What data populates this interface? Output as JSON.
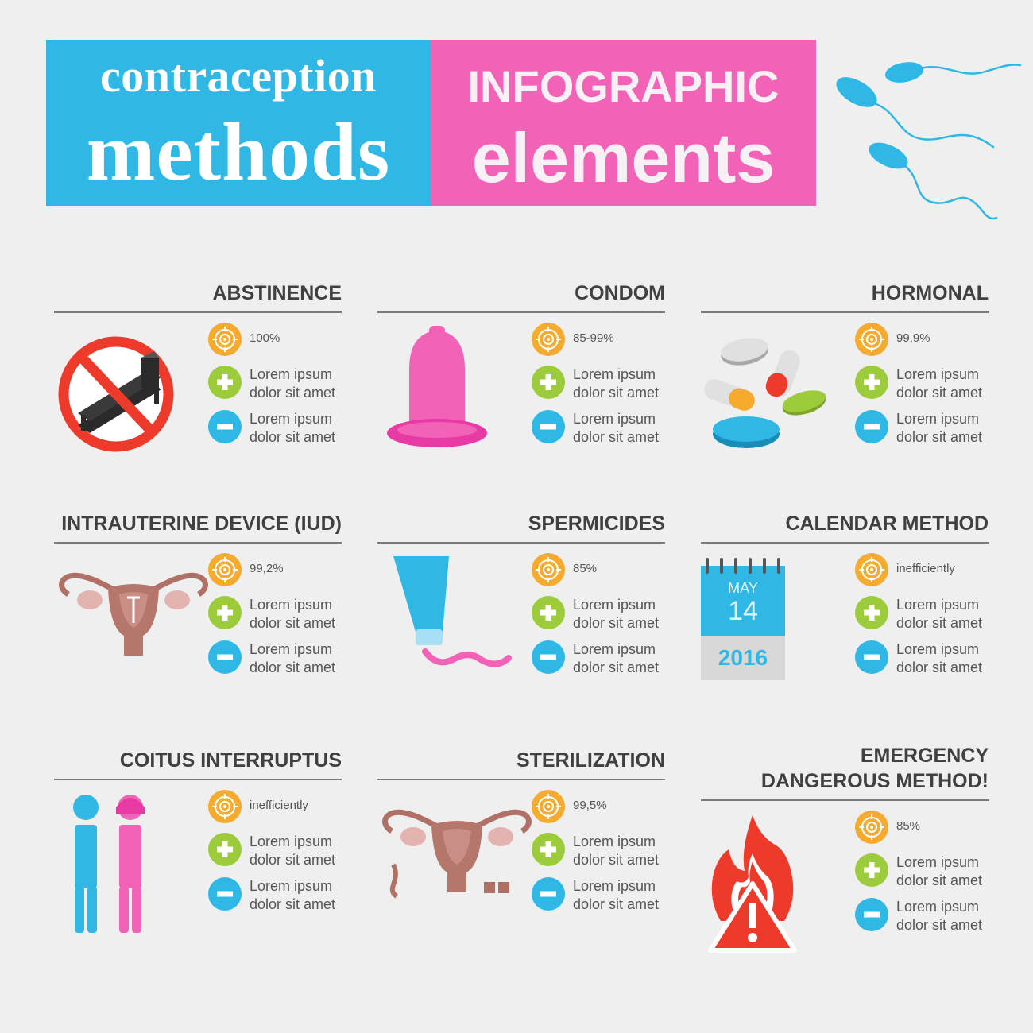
{
  "header": {
    "title_left_small": "contraception",
    "title_left_big": "methods",
    "title_right_small": "INFOGRAPHIC",
    "title_right_big": "elements",
    "left_color": "#2fb7e6",
    "right_color": "#f263b8"
  },
  "icons": {
    "rate": "target-icon",
    "pro": "plus-icon",
    "con": "minus-icon"
  },
  "colors": {
    "rate_badge": "#f6ab2f",
    "pro_badge": "#9ccb3b",
    "con_badge": "#2fb7e6",
    "title_text": "#404040"
  },
  "methods": [
    {
      "title_lines": [
        "ABSTINENCE"
      ],
      "rate": "100%",
      "pro_lines": [
        "Lorem ipsum",
        "dolor sit amet"
      ],
      "con_lines": [
        "Lorem ipsum",
        "dolor sit amet"
      ],
      "icon": "no-bed-icon"
    },
    {
      "title_lines": [
        "CONDOM"
      ],
      "rate": "85-99%",
      "pro_lines": [
        "Lorem ipsum",
        "dolor sit amet"
      ],
      "con_lines": [
        "Lorem ipsum",
        "dolor sit amet"
      ],
      "icon": "condom-icon"
    },
    {
      "title_lines": [
        "HORMONAL"
      ],
      "rate": "99,9%",
      "pro_lines": [
        "Lorem ipsum",
        "dolor sit amet"
      ],
      "con_lines": [
        "Lorem ipsum",
        "dolor sit amet"
      ],
      "icon": "pills-icon"
    },
    {
      "title_lines": [
        "INTRAUTERINE DEVICE (IUD)"
      ],
      "rate": "99,2%",
      "pro_lines": [
        "Lorem ipsum",
        "dolor sit amet"
      ],
      "con_lines": [
        "Lorem ipsum",
        "dolor sit amet"
      ],
      "icon": "uterus-iud-icon"
    },
    {
      "title_lines": [
        "SPERMICIDES"
      ],
      "rate": "85%",
      "pro_lines": [
        "Lorem ipsum",
        "dolor sit amet"
      ],
      "con_lines": [
        "Lorem ipsum",
        "dolor sit amet"
      ],
      "icon": "spermicide-tube-icon"
    },
    {
      "title_lines": [
        "CALENDAR METHOD"
      ],
      "rate": "inefficiently",
      "pro_lines": [
        "Lorem ipsum",
        "dolor sit amet"
      ],
      "con_lines": [
        "Lorem ipsum",
        "dolor sit amet"
      ],
      "icon": "calendar-icon",
      "calendar": {
        "month": "MAY",
        "day": "14",
        "year": "2016"
      }
    },
    {
      "title_lines": [
        "COITUS INTERRUPTUS"
      ],
      "rate": "inefficiently",
      "pro_lines": [
        "Lorem ipsum",
        "dolor sit amet"
      ],
      "con_lines": [
        "Lorem ipsum",
        "dolor sit amet"
      ],
      "icon": "man-woman-icon"
    },
    {
      "title_lines": [
        "STERILIZATION"
      ],
      "rate": "99,5%",
      "pro_lines": [
        "Lorem ipsum",
        "dolor sit amet"
      ],
      "con_lines": [
        "Lorem ipsum",
        "dolor sit amet"
      ],
      "icon": "uterus-tied-icon"
    },
    {
      "title_lines": [
        "EMERGENCY",
        "DANGEROUS METHOD!"
      ],
      "rate": "85%",
      "pro_lines": [
        "Lorem ipsum",
        "dolor sit amet"
      ],
      "con_lines": [
        "Lorem ipsum",
        "dolor sit amet"
      ],
      "icon": "fire-warning-icon"
    }
  ]
}
